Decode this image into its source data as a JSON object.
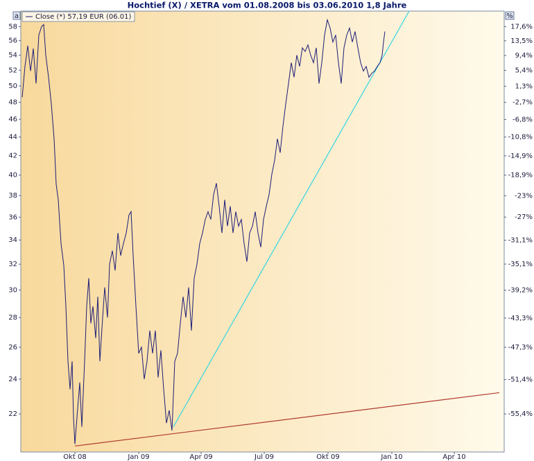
{
  "chart_data": {
    "type": "line",
    "title": "Hochtief (X) / XETRA vom 01.08.2008 bis 03.06.2010 1,8 Jahre",
    "left_axis_badge": "a",
    "right_axis_badge": "%",
    "log_scale": true,
    "background": [
      "#f8d99c",
      "#fffaeb"
    ],
    "xlim": [
      "2008-07-30",
      "2010-06-27"
    ],
    "xticks": [
      {
        "value": "2008-10-16",
        "label": "Okt 08"
      },
      {
        "value": "2009-01-16",
        "label": "Jan 09"
      },
      {
        "value": "2009-04-16",
        "label": "Apr 09"
      },
      {
        "value": "2009-07-16",
        "label": "Jul 09"
      },
      {
        "value": "2009-10-16",
        "label": "Okt 09"
      },
      {
        "value": "2010-01-16",
        "label": "Jan 10"
      },
      {
        "value": "2010-04-16",
        "label": "Apr 10"
      }
    ],
    "ylim": [
      20,
      60.3
    ],
    "yticks": [
      22,
      24,
      26,
      28,
      30,
      32,
      34,
      36,
      38,
      40,
      42,
      44,
      46,
      48,
      50,
      52,
      54,
      56,
      58
    ],
    "y2lim": [
      -59.45,
      22.26
    ],
    "y2ticks": [
      {
        "value": 17.6,
        "label": "17,6%"
      },
      {
        "value": 13.5,
        "label": "13,5%"
      },
      {
        "value": 9.4,
        "label": "9,4%"
      },
      {
        "value": 5.4,
        "label": "5,4%"
      },
      {
        "value": 1.3,
        "label": "1,3%"
      },
      {
        "value": -2.7,
        "label": "-2,7%"
      },
      {
        "value": -6.8,
        "label": "-6,8%"
      },
      {
        "value": -10.8,
        "label": "-10,8%"
      },
      {
        "value": -14.9,
        "label": "-14,9%"
      },
      {
        "value": -18.9,
        "label": "-18,9%"
      },
      {
        "value": -23,
        "label": "-23%"
      },
      {
        "value": -27,
        "label": "-27%"
      },
      {
        "value": -31.1,
        "label": "-31,1%"
      },
      {
        "value": -35.1,
        "label": "-35,1%"
      },
      {
        "value": -39.2,
        "label": "-39,2%"
      },
      {
        "value": -43.3,
        "label": "-43,3%"
      },
      {
        "value": -47.3,
        "label": "-47,3%"
      },
      {
        "value": -51.4,
        "label": "-51,4%"
      },
      {
        "value": -55.4,
        "label": "-55,4%"
      }
    ],
    "series": [
      {
        "name": "Close (*) 57,19 EUR (06.01)",
        "color": "#1c1c78",
        "x": [
          "2008-08-01",
          "2008-08-05",
          "2008-08-09",
          "2008-08-13",
          "2008-08-17",
          "2008-08-21",
          "2008-08-25",
          "2008-08-29",
          "2008-09-01",
          "2008-09-04",
          "2008-09-08",
          "2008-09-12",
          "2008-09-16",
          "2008-09-19",
          "2008-09-22",
          "2008-09-26",
          "2008-09-30",
          "2008-10-03",
          "2008-10-06",
          "2008-10-09",
          "2008-10-12",
          "2008-10-14",
          "2008-10-16",
          "2008-10-20",
          "2008-10-23",
          "2008-10-26",
          "2008-10-30",
          "2008-11-02",
          "2008-11-05",
          "2008-11-08",
          "2008-11-11",
          "2008-11-15",
          "2008-11-18",
          "2008-11-21",
          "2008-11-25",
          "2008-11-28",
          "2008-12-02",
          "2008-12-05",
          "2008-12-09",
          "2008-12-13",
          "2008-12-17",
          "2008-12-21",
          "2008-12-25",
          "2008-12-29",
          "2009-01-02",
          "2009-01-05",
          "2009-01-08",
          "2009-01-12",
          "2009-01-16",
          "2009-01-20",
          "2009-01-24",
          "2009-01-28",
          "2009-02-01",
          "2009-02-05",
          "2009-02-09",
          "2009-02-13",
          "2009-02-17",
          "2009-02-21",
          "2009-02-25",
          "2009-03-01",
          "2009-03-05",
          "2009-03-09",
          "2009-03-13",
          "2009-03-17",
          "2009-03-21",
          "2009-03-25",
          "2009-03-29",
          "2009-04-02",
          "2009-04-06",
          "2009-04-10",
          "2009-04-14",
          "2009-04-18",
          "2009-04-22",
          "2009-04-26",
          "2009-04-30",
          "2009-05-04",
          "2009-05-08",
          "2009-05-12",
          "2009-05-16",
          "2009-05-20",
          "2009-05-24",
          "2009-05-28",
          "2009-06-01",
          "2009-06-05",
          "2009-06-09",
          "2009-06-13",
          "2009-06-17",
          "2009-06-21",
          "2009-06-25",
          "2009-06-29",
          "2009-07-03",
          "2009-07-07",
          "2009-07-11",
          "2009-07-15",
          "2009-07-19",
          "2009-07-23",
          "2009-07-27",
          "2009-07-31",
          "2009-08-04",
          "2009-08-08",
          "2009-08-12",
          "2009-08-16",
          "2009-08-20",
          "2009-08-24",
          "2009-08-28",
          "2009-09-01",
          "2009-09-05",
          "2009-09-09",
          "2009-09-13",
          "2009-09-17",
          "2009-09-21",
          "2009-09-25",
          "2009-09-29",
          "2009-10-03",
          "2009-10-07",
          "2009-10-11",
          "2009-10-15",
          "2009-10-19",
          "2009-10-23",
          "2009-10-27",
          "2009-10-31",
          "2009-11-04",
          "2009-11-08",
          "2009-11-12",
          "2009-11-16",
          "2009-11-20",
          "2009-11-24",
          "2009-11-28",
          "2009-12-02",
          "2009-12-06",
          "2009-12-10",
          "2009-12-14",
          "2009-12-18",
          "2009-12-22",
          "2009-12-26",
          "2009-12-30",
          "2010-01-02",
          "2010-01-04",
          "2010-01-06"
        ],
        "values": [
          48.6,
          52.5,
          55.3,
          51.9,
          54.9,
          50.3,
          56.8,
          58,
          58.3,
          54.0,
          51.1,
          47.8,
          43.8,
          39.1,
          37.6,
          33.7,
          31.9,
          28.8,
          25.1,
          23.4,
          25.1,
          21.8,
          20.4,
          22.3,
          23.8,
          21.3,
          25.1,
          28.8,
          30.9,
          27.6,
          28.8,
          26.6,
          29.5,
          25.1,
          28.0,
          30.2,
          28.0,
          32.0,
          33.1,
          31.5,
          34.6,
          32.7,
          33.7,
          34.6,
          36.2,
          36.5,
          32.7,
          28.8,
          25.6,
          26.0,
          24.0,
          25.1,
          27.1,
          25.6,
          27.1,
          24.1,
          25.8,
          23.4,
          21.5,
          22.2,
          21.1,
          25.1,
          25.6,
          27.6,
          29.5,
          28.0,
          30.2,
          27.1,
          30.9,
          32.0,
          33.7,
          34.6,
          35.8,
          36.5,
          35.8,
          38.1,
          39.2,
          37.0,
          34.6,
          37.6,
          35.2,
          37.0,
          34.6,
          36.5,
          35.2,
          35.8,
          33.7,
          32.2,
          34.6,
          35.2,
          36.5,
          34.6,
          33.4,
          35.8,
          37.0,
          38.1,
          40.1,
          41.5,
          43.8,
          42.3,
          45.2,
          47.8,
          50.3,
          53.0,
          51.1,
          54.0,
          52.5,
          55.0,
          54.5,
          55.4,
          54.0,
          53.0,
          55.0,
          50.3,
          53.0,
          56.8,
          59.0,
          57.8,
          55.8,
          56.8,
          53.0,
          50.3,
          55.0,
          56.8,
          57.8,
          55.8,
          57.3,
          55.0,
          53.0,
          51.9,
          52.5,
          51.1,
          51.6,
          51.9,
          52.5,
          53.0,
          54.0,
          55.8,
          57.3
        ]
      }
    ],
    "trendlines": [
      {
        "color": "#33d6e0",
        "x": [
          "2009-03-07",
          "2010-02-10"
        ],
        "values": [
          21.3,
          60.3
        ]
      },
      {
        "color": "#b03a2e",
        "x": [
          "2008-10-16",
          "2010-06-20"
        ],
        "values": [
          20.3,
          23.2
        ]
      }
    ]
  }
}
